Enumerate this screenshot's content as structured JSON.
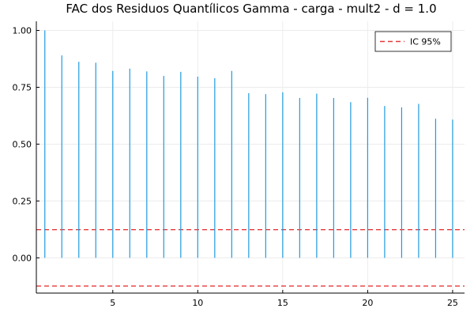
{
  "chart_data": {
    "type": "bar",
    "title": "FAC dos Residuos Quantílicos Gamma - carga - mult2 - d = 1.0",
    "xlabel": "",
    "ylabel": "",
    "x": [
      1,
      2,
      3,
      4,
      5,
      6,
      7,
      8,
      9,
      10,
      11,
      12,
      13,
      14,
      15,
      16,
      17,
      18,
      19,
      20,
      21,
      22,
      23,
      24,
      25
    ],
    "values": [
      1.0,
      0.89,
      0.862,
      0.858,
      0.822,
      0.832,
      0.82,
      0.8,
      0.818,
      0.797,
      0.79,
      0.822,
      0.724,
      0.72,
      0.728,
      0.703,
      0.722,
      0.703,
      0.685,
      0.704,
      0.668,
      0.662,
      0.677,
      0.612,
      0.608
    ],
    "xlim": [
      0.5,
      25.7
    ],
    "ylim": [
      -0.155,
      1.04
    ],
    "xticks": [
      5,
      10,
      15,
      20,
      25
    ],
    "yticks": [
      0.0,
      0.25,
      0.5,
      0.75,
      1.0
    ],
    "xtick_labels": [
      "5",
      "10",
      "15",
      "20",
      "25"
    ],
    "ytick_labels": [
      "0.00",
      "0.25",
      "0.50",
      "0.75",
      "1.00"
    ],
    "confidence_band": {
      "upper": 0.124,
      "lower": -0.124
    },
    "legend": {
      "entries": [
        "IC 95%"
      ],
      "placement": "top-right"
    },
    "grid": true,
    "colors": {
      "bars": "#1f9be0",
      "ci": "#e6393a",
      "grid": "#ececec",
      "axis": "#000000"
    }
  }
}
